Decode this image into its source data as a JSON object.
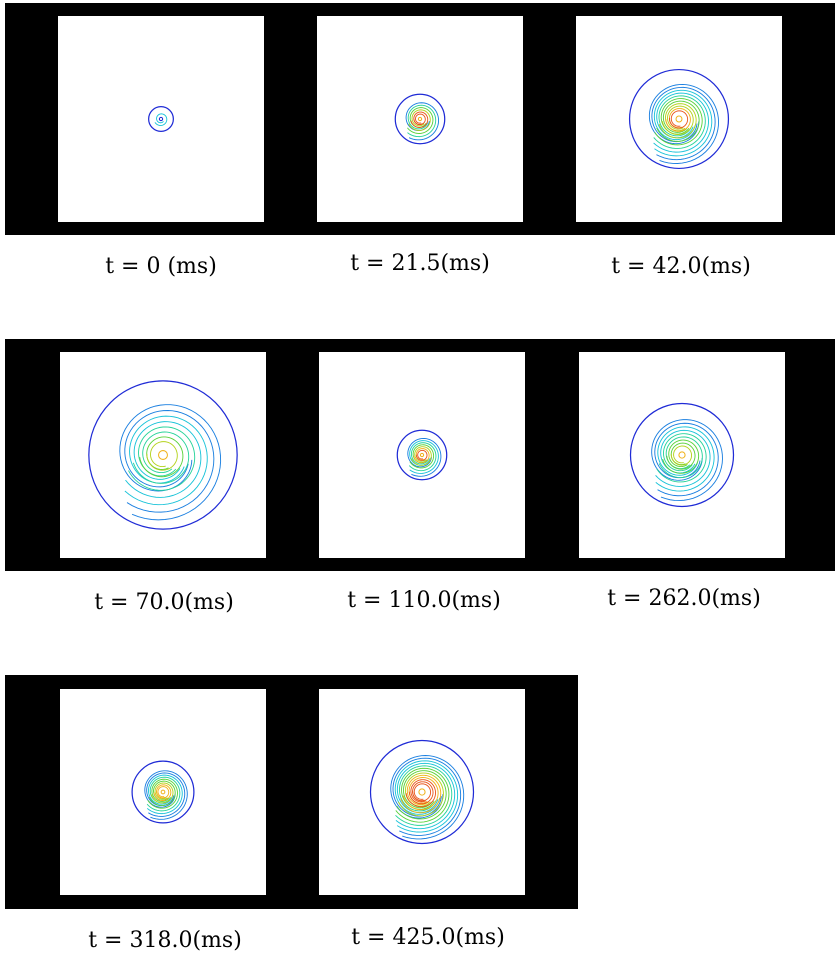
{
  "figure": {
    "frames": [
      {
        "label": "t = 0 (ms)",
        "wave_size": 0.12,
        "rings": 1,
        "warmth": 0.1
      },
      {
        "label": "t = 21.5(ms)",
        "wave_size": 0.24,
        "rings": 6,
        "warmth": 0.9
      },
      {
        "label": "t = 42.0(ms)",
        "wave_size": 0.48,
        "rings": 11,
        "warmth": 0.6
      },
      {
        "label": "t = 70.0(ms)",
        "wave_size": 0.72,
        "rings": 8,
        "warmth": 0.3
      },
      {
        "label": "t = 110.0(ms)",
        "wave_size": 0.24,
        "rings": 7,
        "warmth": 0.7
      },
      {
        "label": "t = 262.0(ms)",
        "wave_size": 0.5,
        "rings": 9,
        "warmth": 0.35
      },
      {
        "label": "t = 318.0(ms)",
        "wave_size": 0.3,
        "rings": 9,
        "warmth": 0.6
      },
      {
        "label": "t = 425.0(ms)",
        "wave_size": 0.5,
        "rings": 13,
        "warmth": 0.8
      }
    ],
    "colors": {
      "background_band": "#000000",
      "panel": "#ffffff",
      "contour_palette": [
        "#1f2bd6",
        "#1a7fe0",
        "#19c3d8",
        "#27d39a",
        "#5ad23a",
        "#b4d21c",
        "#f0b21a",
        "#e8561c"
      ]
    }
  }
}
